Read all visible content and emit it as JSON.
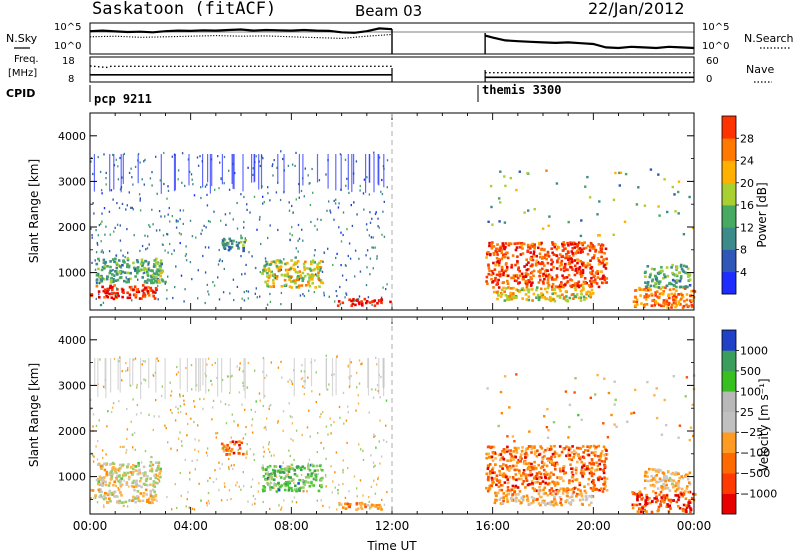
{
  "header": {
    "station": "Saskatoon (fitACF)",
    "beam": "Beam 03",
    "date": "22/Jan/2012"
  },
  "side_labels": {
    "nsky": "N.Sky",
    "nsearch": "N.Search",
    "freq": "Freq.",
    "freq_unit": "[MHz]",
    "nave": "Nave",
    "cpid": "CPID"
  },
  "colors": {
    "power": [
      "#1f2cff",
      "#2f57b8",
      "#3d8a8a",
      "#48aa60",
      "#a8d030",
      "#ffb000",
      "#ff7800",
      "#ff3300",
      "#e80000"
    ],
    "velocity": [
      "#e00000",
      "#ff5000",
      "#ff8c00",
      "#ffb24a",
      "#c8c8c8",
      "#9acd6a",
      "#46c832",
      "#3aa050",
      "#2050d0"
    ],
    "velocity_colorbar": [
      "#e80000",
      "#ff3a00",
      "#ff6a00",
      "#ff9a22",
      "#c0c0c0",
      "#b8b8b8",
      "#38c020",
      "#3c9e5c",
      "#2040c8"
    ]
  },
  "chart_data": [
    {
      "type": "line",
      "name": "noise-panel",
      "series": [
        {
          "name": "N.Sky",
          "style": "solid",
          "segments": [
            {
              "x": [
                0.0,
                0.5,
                1.0,
                1.5,
                2.0,
                2.5,
                3.0,
                3.5,
                4.0,
                4.5,
                5.0,
                5.5,
                6.0,
                6.5,
                7.0,
                7.5,
                8.0,
                8.5,
                9.0,
                9.5,
                10.0,
                10.5,
                11.0,
                11.5,
                12.0
              ],
              "y": [
                0.78,
                0.8,
                0.77,
                0.75,
                0.76,
                0.74,
                0.78,
                0.8,
                0.79,
                0.81,
                0.8,
                0.82,
                0.84,
                0.8,
                0.82,
                0.81,
                0.8,
                0.82,
                0.8,
                0.79,
                0.74,
                0.72,
                0.78,
                0.88,
                0.85
              ]
            },
            {
              "x": [
                15.7,
                16.0,
                16.5,
                17.0,
                17.5,
                18.0,
                18.5,
                19.0,
                19.5,
                20.0,
                20.5,
                21.0,
                21.5,
                22.0,
                22.5,
                23.0,
                23.5,
                24.0
              ],
              "y": [
                0.62,
                0.55,
                0.45,
                0.42,
                0.4,
                0.38,
                0.36,
                0.38,
                0.35,
                0.32,
                0.2,
                0.18,
                0.22,
                0.2,
                0.18,
                0.22,
                0.2,
                0.18
              ]
            }
          ]
        },
        {
          "name": "N.Search",
          "style": "dotted",
          "segments": [
            {
              "x": [
                0.0,
                1.0,
                2.0,
                3.0,
                4.0,
                5.0,
                6.0,
                7.0,
                8.0,
                9.0,
                10.0,
                11.0,
                12.0
              ],
              "y": [
                0.58,
                0.6,
                0.56,
                0.58,
                0.6,
                0.62,
                0.6,
                0.61,
                0.58,
                0.55,
                0.52,
                0.6,
                0.66
              ]
            }
          ]
        }
      ]
    },
    {
      "type": "line",
      "name": "freq-nave-panel",
      "series": [
        {
          "name": "Freq.",
          "style": "solid",
          "segments": [
            {
              "x": [
                0,
                12
              ],
              "y": [
                10.7,
                10.7
              ]
            },
            {
              "x": [
                15.7,
                24
              ],
              "y": [
                9.6,
                9.6
              ]
            }
          ]
        },
        {
          "name": "Nave",
          "style": "dotted",
          "segments": [
            {
              "x": [
                0,
                0.8
              ],
              "y": [
                14.5,
                13.8
              ]
            },
            {
              "x": [
                0.8,
                12
              ],
              "y": [
                14.4,
                14.4
              ]
            },
            {
              "x": [
                15.7,
                24
              ],
              "y": [
                11.6,
                11.6
              ]
            }
          ]
        }
      ]
    },
    {
      "type": "heatmap",
      "name": "power-panel",
      "xlabel": "",
      "ylabel": "Slant Range [km]",
      "ylim": [
        180,
        4500
      ],
      "yticks": [
        "1000",
        "2000",
        "3000",
        "4000"
      ],
      "colorbar": {
        "label": "Power [dB]",
        "ticks": [
          "4",
          "8",
          "12",
          "16",
          "20",
          "24",
          "28"
        ]
      },
      "cpid": [
        {
          "label": "pcp 9211"
        },
        {
          "label": "themis 3300"
        }
      ],
      "blobs": [
        {
          "x": [
            0.0,
            2.6
          ],
          "y": [
            450,
            750
          ],
          "level": 0.9
        },
        {
          "x": [
            0.2,
            2.8
          ],
          "y": [
            800,
            1350
          ],
          "level": 0.35
        },
        {
          "x": [
            2.4,
            3.0
          ],
          "y": [
            800,
            1100
          ],
          "level": 0.5
        },
        {
          "x": [
            5.2,
            6.2
          ],
          "y": [
            1500,
            1800
          ],
          "level": 0.3
        },
        {
          "x": [
            6.8,
            9.2
          ],
          "y": [
            700,
            1300
          ],
          "level": 0.55
        },
        {
          "x": [
            9.8,
            11.9
          ],
          "y": [
            300,
            450
          ],
          "level": 0.95
        },
        {
          "x": [
            15.7,
            20.5
          ],
          "y": [
            700,
            1700
          ],
          "level": 0.85
        },
        {
          "x": [
            16.0,
            20.0
          ],
          "y": [
            400,
            700
          ],
          "level": 0.55
        },
        {
          "x": [
            21.5,
            24.0
          ],
          "y": [
            250,
            700
          ],
          "level": 0.75
        },
        {
          "x": [
            22.0,
            23.8
          ],
          "y": [
            700,
            1200
          ],
          "level": 0.35
        }
      ]
    },
    {
      "type": "heatmap",
      "name": "velocity-panel",
      "xlabel": "Time UT",
      "ylabel": "Slant Range [km]",
      "ylim": [
        180,
        4500
      ],
      "yticks": [
        "1000",
        "2000",
        "3000",
        "4000"
      ],
      "xticks": [
        "00:00",
        "04:00",
        "08:00",
        "12:00",
        "16:00",
        "20:00",
        "00:00"
      ],
      "colorbar": {
        "label": "Velocity [m s⁻¹]",
        "ticks": [
          "1000",
          "500",
          "100",
          "25",
          "−25",
          "−100",
          "−500",
          "−1000"
        ]
      },
      "blobs": [
        {
          "x": [
            0.0,
            2.6
          ],
          "y": [
            450,
            750
          ],
          "level": 0.45
        },
        {
          "x": [
            0.2,
            2.8
          ],
          "y": [
            800,
            1350
          ],
          "level": 0.5
        },
        {
          "x": [
            5.2,
            6.2
          ],
          "y": [
            1500,
            1800
          ],
          "level": 0.2
        },
        {
          "x": [
            6.8,
            9.2
          ],
          "y": [
            700,
            1300
          ],
          "level": 0.75
        },
        {
          "x": [
            9.8,
            11.9
          ],
          "y": [
            300,
            450
          ],
          "level": 0.3
        },
        {
          "x": [
            15.7,
            20.5
          ],
          "y": [
            700,
            1700
          ],
          "level": 0.2
        },
        {
          "x": [
            16.0,
            20.0
          ],
          "y": [
            400,
            700
          ],
          "level": 0.35
        },
        {
          "x": [
            21.5,
            24.0
          ],
          "y": [
            250,
            700
          ],
          "level": 0.1
        },
        {
          "x": [
            22.0,
            23.8
          ],
          "y": [
            700,
            1200
          ],
          "level": 0.4
        }
      ]
    }
  ]
}
